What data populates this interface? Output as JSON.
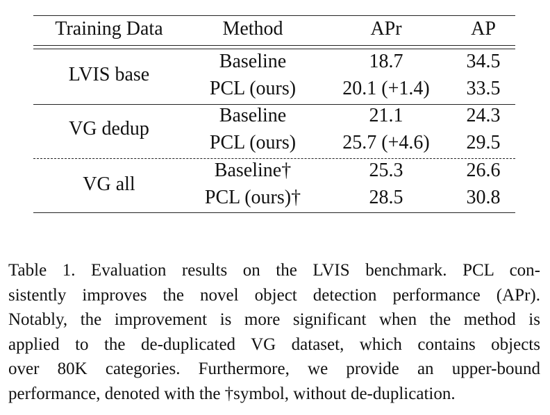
{
  "table": {
    "headers": [
      "Training Data",
      "Method",
      "APr",
      "AP"
    ],
    "groups": [
      {
        "training_data": "LVIS base",
        "rows": [
          {
            "method": "Baseline",
            "apr": "18.7",
            "ap": "34.5"
          },
          {
            "method": "PCL (ours)",
            "apr": "20.1 (+1.4)",
            "ap": "33.5"
          }
        ]
      },
      {
        "training_data": "VG dedup",
        "rows": [
          {
            "method": "Baseline",
            "apr": "21.1",
            "ap": "24.3"
          },
          {
            "method": "PCL (ours)",
            "apr": "25.7 (+4.6)",
            "ap": "29.5"
          }
        ]
      },
      {
        "training_data": "VG all",
        "rows": [
          {
            "method": "Baseline†",
            "apr": "25.3",
            "ap": "26.6"
          },
          {
            "method": "PCL (ours)†",
            "apr": "28.5",
            "ap": "30.8"
          }
        ]
      }
    ]
  },
  "caption": {
    "lines": [
      "Table 1.  Evaluation results on the LVIS benchmark.  PCL con-",
      "sistently improves the novel object detection performance (APr).",
      "Notably, the improvement is more significant when the method is",
      "applied to the de-duplicated VG dataset, which contains objects",
      "over 80K categories.  Furthermore, we provide an upper-bound",
      "performance, denoted with the †symbol, without de-duplication."
    ]
  }
}
